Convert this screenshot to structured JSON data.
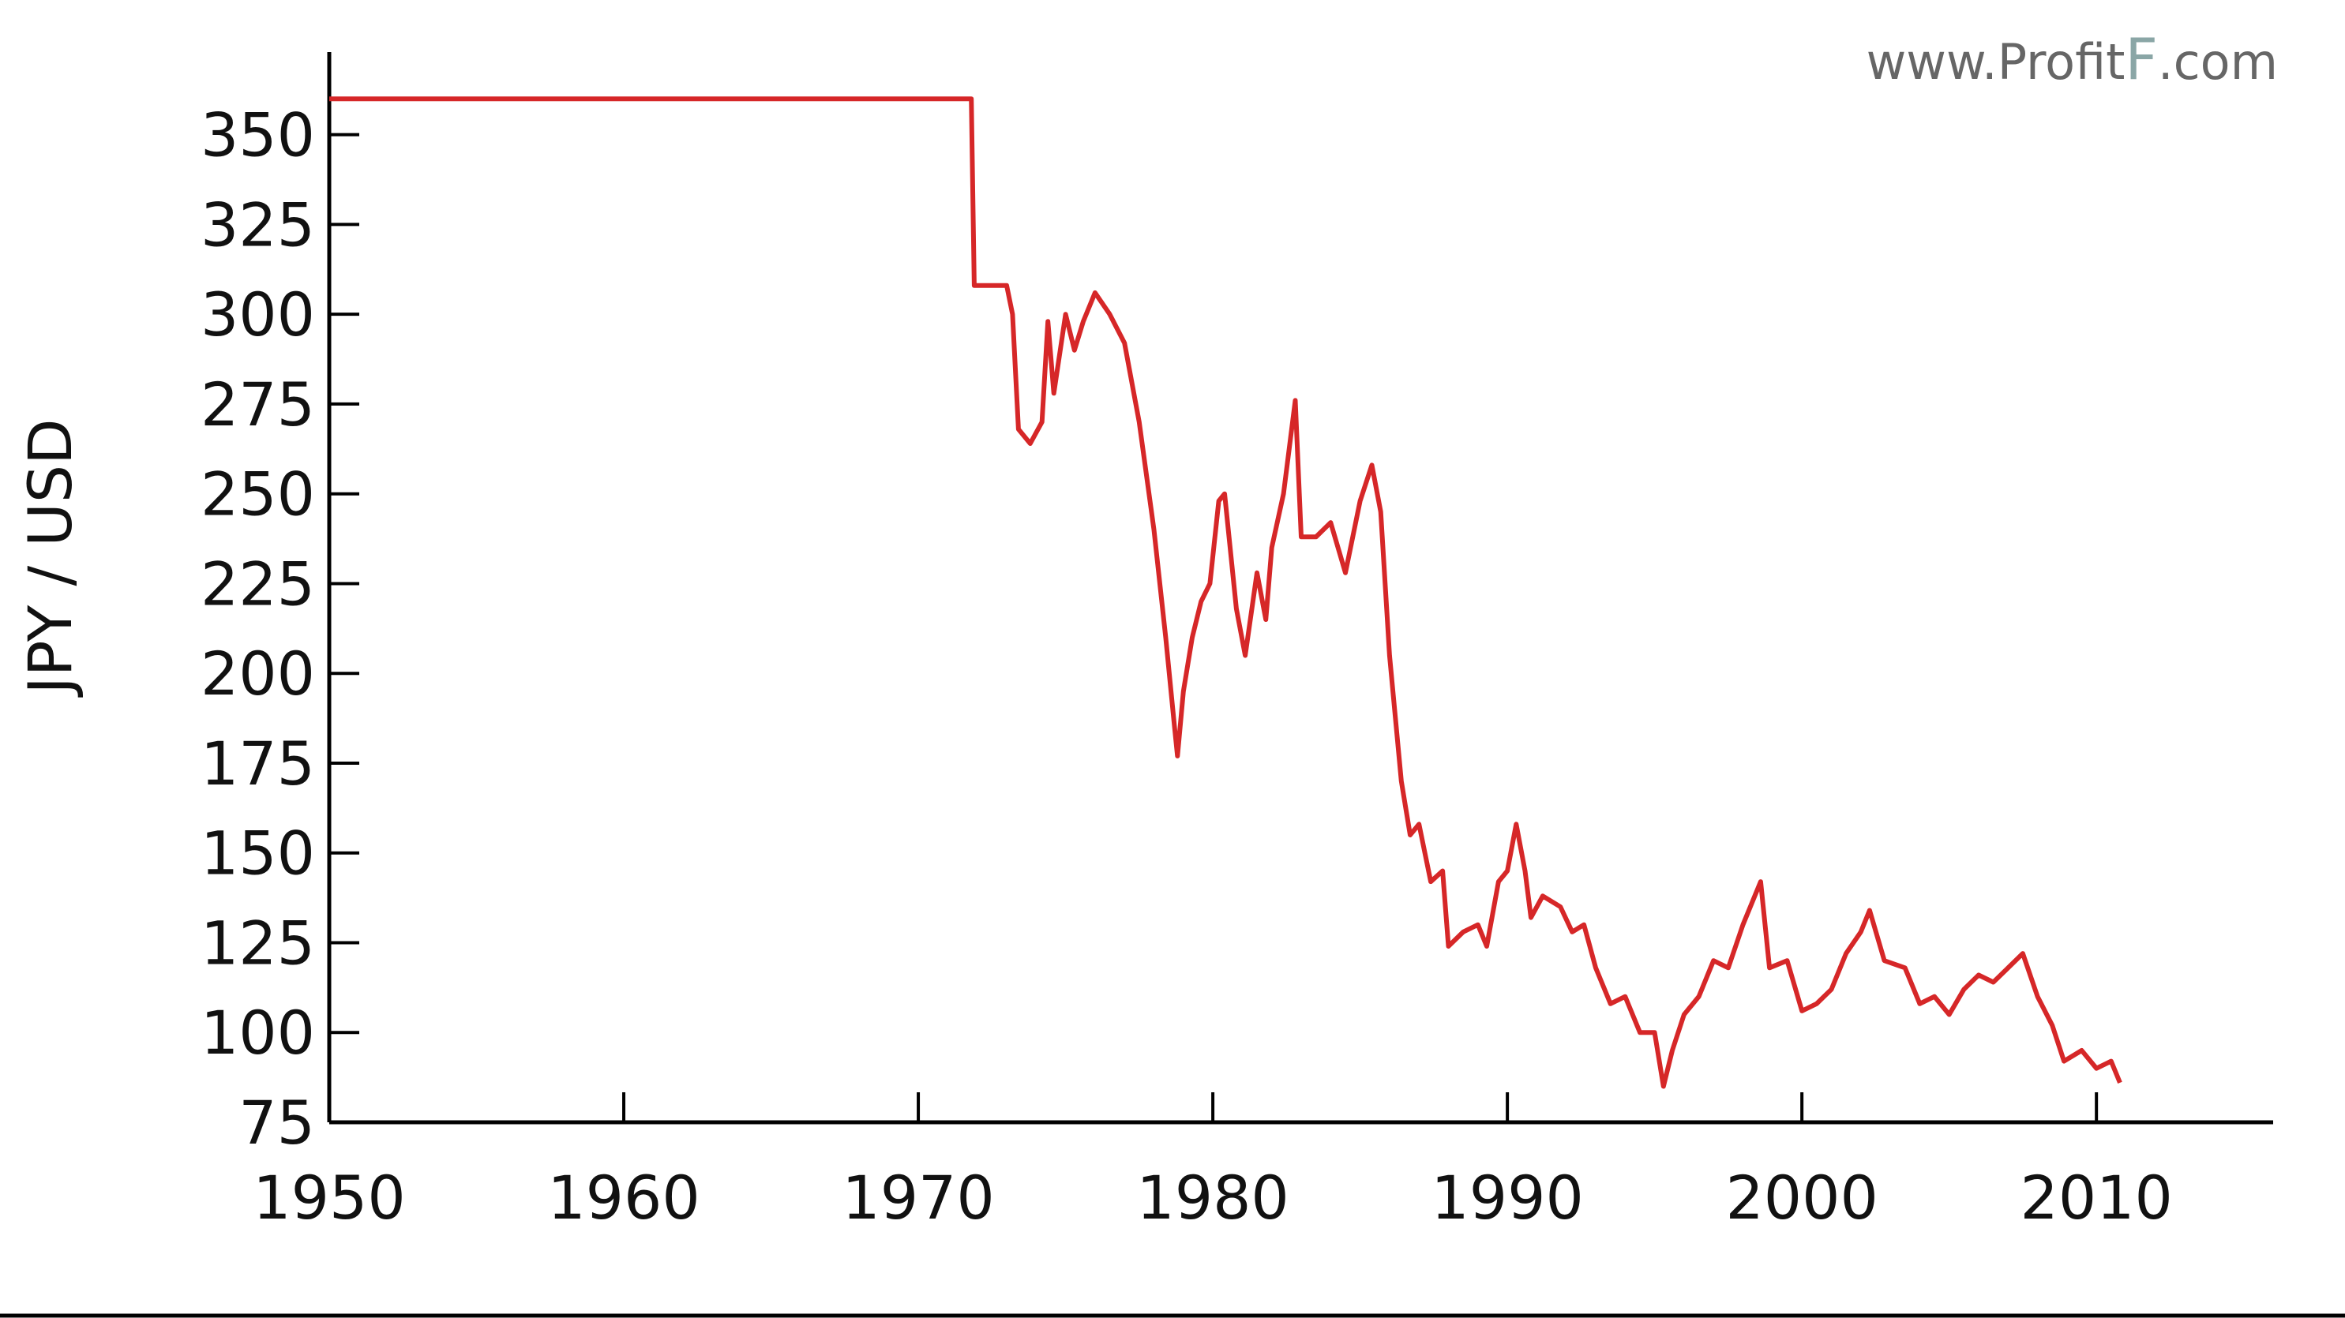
{
  "chart_data": {
    "type": "line",
    "ylabel": "JPY / USD",
    "watermark": [
      "www.Profit",
      "F",
      ".com"
    ],
    "color": "#d62728",
    "x": [
      1950,
      1971.8,
      1971.9,
      1973.0,
      1973.2,
      1973.4,
      1973.8,
      1974.2,
      1974.4,
      1974.6,
      1975,
      1975.3,
      1975.6,
      1976,
      1976.5,
      1977,
      1977.5,
      1978,
      1978.4,
      1978.7,
      1978.8,
      1979,
      1979.3,
      1979.6,
      1979.9,
      1980.2,
      1980.4,
      1980.8,
      1981.1,
      1981.5,
      1981.8,
      1982,
      1982.4,
      1982.8,
      1983,
      1983.5,
      1984,
      1984.5,
      1985,
      1985.4,
      1985.7,
      1986,
      1986.4,
      1986.7,
      1987,
      1987.4,
      1987.8,
      1988,
      1988.5,
      1989,
      1989.3,
      1989.7,
      1990,
      1990.3,
      1990.6,
      1990.8,
      1991.2,
      1991.8,
      1992.2,
      1992.6,
      1993,
      1993.5,
      1994,
      1994.5,
      1995,
      1995.3,
      1995.6,
      1996,
      1996.5,
      1997,
      1997.5,
      1998,
      1998.6,
      1998.9,
      1999.5,
      2000,
      2000.5,
      2001,
      2001.5,
      2002,
      2002.3,
      2002.8,
      2003.5,
      2004,
      2004.5,
      2005,
      2005.5,
      2006,
      2006.5,
      2007,
      2007.5,
      2008,
      2008.5,
      2008.9,
      2009.5,
      2010,
      2010.5,
      2010.8
    ],
    "values": [
      360,
      360,
      308,
      308,
      300,
      268,
      264,
      270,
      298,
      278,
      300,
      290,
      298,
      306,
      300,
      292,
      270,
      240,
      210,
      185,
      177,
      195,
      210,
      220,
      225,
      248,
      250,
      218,
      205,
      228,
      215,
      235,
      250,
      276,
      238,
      238,
      242,
      228,
      248,
      258,
      245,
      205,
      170,
      155,
      158,
      142,
      145,
      124,
      128,
      130,
      124,
      142,
      145,
      158,
      145,
      132,
      138,
      135,
      128,
      130,
      118,
      108,
      110,
      100,
      100,
      85,
      95,
      105,
      110,
      120,
      118,
      130,
      142,
      118,
      120,
      106,
      108,
      112,
      122,
      128,
      134,
      120,
      118,
      108,
      110,
      105,
      112,
      116,
      114,
      118,
      122,
      110,
      102,
      92,
      95,
      90,
      92,
      86
    ],
    "xlim": [
      1950,
      2016
    ],
    "xticks": [
      1950,
      1960,
      1970,
      1980,
      1990,
      2000,
      2010
    ],
    "ylim": [
      75,
      373
    ],
    "yticks": [
      75,
      100,
      125,
      150,
      175,
      200,
      225,
      250,
      275,
      300,
      325,
      350
    ]
  }
}
